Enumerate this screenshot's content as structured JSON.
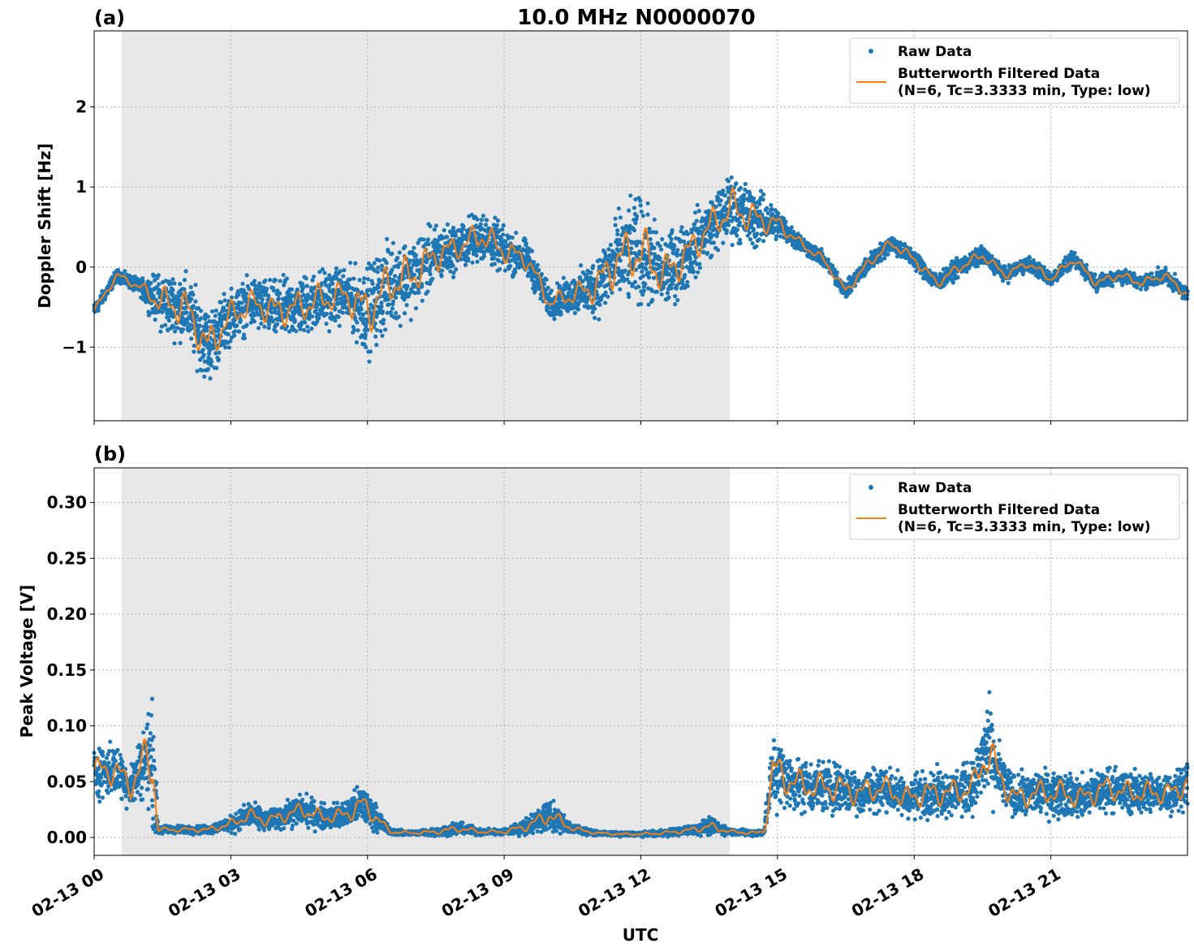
{
  "chart_data": [
    {
      "type": "line",
      "panel_label": "(a)",
      "title": "10.0 MHz N0000070",
      "xlabel": "",
      "ylabel": "Doppler Shift [Hz]",
      "x_unit": "hours since 02-13 00 UTC",
      "xlim": [
        0,
        24
      ],
      "ylim": [
        -1.92,
        2.95
      ],
      "xticks": [
        0,
        3,
        6,
        9,
        12,
        15,
        18,
        21
      ],
      "yticks": [
        -1,
        0,
        1,
        2
      ],
      "ytick_labels": [
        "−1",
        "0",
        "1",
        "2"
      ],
      "grid": true,
      "night_shading": [
        0.6,
        13.95
      ],
      "legend": {
        "position": "top-right",
        "entries": [
          "Raw Data",
          "Butterworth Filtered Data",
          "(N=6, Tc=3.3333 min, Type: low)"
        ]
      },
      "series": [
        {
          "name": "Raw Data",
          "style": "points",
          "color": "#1f77b4",
          "x": [
            0,
            0.5,
            1,
            1.5,
            2,
            2.5,
            3,
            3.5,
            4,
            4.5,
            5,
            5.5,
            6,
            6.5,
            7,
            7.5,
            8,
            8.5,
            9,
            9.5,
            10,
            10.5,
            11,
            11.5,
            12,
            12.5,
            13,
            13.5,
            14,
            14.5,
            15,
            15.5,
            16,
            16.5,
            17,
            17.5,
            18,
            18.5,
            19,
            19.5,
            20,
            20.5,
            21,
            21.5,
            22,
            22.5,
            23,
            23.5,
            24
          ],
          "y": [
            -0.55,
            -0.1,
            -0.25,
            -0.45,
            -0.5,
            -1.0,
            -0.6,
            -0.45,
            -0.55,
            -0.5,
            -0.4,
            -0.35,
            -0.55,
            -0.2,
            -0.1,
            0.15,
            0.25,
            0.4,
            0.2,
            0.1,
            -0.45,
            -0.35,
            -0.25,
            0.1,
            0.2,
            -0.1,
            0.15,
            0.5,
            0.75,
            0.6,
            0.55,
            0.3,
            0.1,
            -0.3,
            0.05,
            0.3,
            0.1,
            -0.2,
            0.0,
            0.15,
            -0.1,
            0.05,
            -0.15,
            0.1,
            -0.2,
            -0.1,
            -0.2,
            -0.1,
            -0.35
          ],
          "spread": [
            0.1,
            0.08,
            0.1,
            0.4,
            0.45,
            0.5,
            0.35,
            0.35,
            0.4,
            0.4,
            0.4,
            0.35,
            0.6,
            0.55,
            0.5,
            0.4,
            0.3,
            0.35,
            0.3,
            0.25,
            0.2,
            0.25,
            0.4,
            0.6,
            0.7,
            0.5,
            0.45,
            0.4,
            0.45,
            0.4,
            0.2,
            0.12,
            0.1,
            0.1,
            0.12,
            0.12,
            0.12,
            0.12,
            0.12,
            0.12,
            0.1,
            0.1,
            0.1,
            0.1,
            0.1,
            0.1,
            0.1,
            0.1,
            0.1
          ]
        },
        {
          "name": "Butterworth Filtered Data",
          "style": "line",
          "color": "#ff7f0e",
          "x": [
            0,
            0.5,
            1,
            1.5,
            2,
            2.5,
            3,
            3.5,
            4,
            4.5,
            5,
            5.5,
            6,
            6.5,
            7,
            7.5,
            8,
            8.5,
            9,
            9.5,
            10,
            10.5,
            11,
            11.5,
            12,
            12.5,
            13,
            13.5,
            14,
            14.5,
            15,
            15.5,
            16,
            16.5,
            17,
            17.5,
            18,
            18.5,
            19,
            19.5,
            20,
            20.5,
            21,
            21.5,
            22,
            22.5,
            23,
            23.5,
            24
          ],
          "y": [
            -0.55,
            -0.1,
            -0.25,
            -0.45,
            -0.5,
            -1.0,
            -0.6,
            -0.45,
            -0.55,
            -0.5,
            -0.4,
            -0.35,
            -0.55,
            -0.2,
            -0.1,
            0.15,
            0.25,
            0.4,
            0.2,
            0.1,
            -0.45,
            -0.35,
            -0.25,
            0.1,
            0.2,
            -0.1,
            0.15,
            0.5,
            0.75,
            0.6,
            0.55,
            0.3,
            0.1,
            -0.3,
            0.05,
            0.3,
            0.1,
            -0.2,
            0.0,
            0.15,
            -0.1,
            0.05,
            -0.15,
            0.1,
            -0.2,
            -0.1,
            -0.2,
            -0.1,
            -0.35
          ]
        }
      ]
    },
    {
      "type": "line",
      "panel_label": "(b)",
      "title": "",
      "xlabel": "UTC",
      "ylabel": "Peak Voltage [V]",
      "x_unit": "hours since 02-13 00 UTC",
      "xlim": [
        0,
        24
      ],
      "ylim": [
        -0.016,
        0.331
      ],
      "xticks": [
        0,
        3,
        6,
        9,
        12,
        15,
        18,
        21
      ],
      "xtick_labels": [
        "02-13 00",
        "02-13 03",
        "02-13 06",
        "02-13 09",
        "02-13 12",
        "02-13 15",
        "02-13 18",
        "02-13 21"
      ],
      "yticks": [
        0.0,
        0.05,
        0.1,
        0.15,
        0.2,
        0.25,
        0.3
      ],
      "ytick_labels": [
        "0.00",
        "0.05",
        "0.10",
        "0.15",
        "0.20",
        "0.25",
        "0.30"
      ],
      "grid": true,
      "night_shading": [
        0.6,
        13.95
      ],
      "legend": {
        "position": "top-right",
        "entries": [
          "Raw Data",
          "Butterworth Filtered Data",
          "(N=6, Tc=3.3333 min, Type: low)"
        ]
      },
      "series": [
        {
          "name": "Raw Data",
          "style": "points",
          "color": "#1f77b4",
          "x": [
            0,
            0.5,
            0.8,
            1.1,
            1.3,
            1.4,
            2,
            2.5,
            3,
            3.4,
            3.8,
            4.2,
            4.6,
            5,
            5.5,
            5.9,
            6.5,
            7,
            7.5,
            8,
            8.5,
            9,
            9.5,
            10,
            10.5,
            11,
            11.5,
            12,
            12.5,
            13,
            13.5,
            14,
            14.5,
            14.7,
            14.9,
            15.3,
            15.8,
            16.3,
            16.8,
            17.3,
            17.8,
            18.3,
            18.8,
            19.3,
            19.6,
            19.8,
            20.2,
            20.7,
            21.2,
            21.7,
            22.2,
            22.7,
            23.2,
            23.7,
            24
          ],
          "y": [
            0.06,
            0.06,
            0.045,
            0.07,
            0.065,
            0.007,
            0.007,
            0.007,
            0.012,
            0.02,
            0.015,
            0.02,
            0.025,
            0.018,
            0.02,
            0.03,
            0.005,
            0.004,
            0.005,
            0.008,
            0.005,
            0.005,
            0.01,
            0.02,
            0.008,
            0.004,
            0.003,
            0.003,
            0.004,
            0.006,
            0.01,
            0.005,
            0.004,
            0.005,
            0.06,
            0.05,
            0.045,
            0.045,
            0.04,
            0.045,
            0.035,
            0.04,
            0.04,
            0.045,
            0.08,
            0.06,
            0.035,
            0.04,
            0.04,
            0.035,
            0.045,
            0.04,
            0.04,
            0.04,
            0.05
          ],
          "spread": [
            0.025,
            0.025,
            0.02,
            0.035,
            0.06,
            0.004,
            0.004,
            0.004,
            0.008,
            0.012,
            0.01,
            0.012,
            0.015,
            0.012,
            0.013,
            0.02,
            0.003,
            0.002,
            0.004,
            0.006,
            0.003,
            0.003,
            0.008,
            0.015,
            0.005,
            0.002,
            0.002,
            0.002,
            0.003,
            0.004,
            0.008,
            0.003,
            0.003,
            0.004,
            0.04,
            0.025,
            0.025,
            0.025,
            0.022,
            0.022,
            0.02,
            0.022,
            0.022,
            0.025,
            0.05,
            0.03,
            0.02,
            0.022,
            0.022,
            0.02,
            0.022,
            0.02,
            0.02,
            0.02,
            0.02
          ]
        },
        {
          "name": "Butterworth Filtered Data",
          "style": "line",
          "color": "#ff7f0e",
          "x": [
            0,
            0.5,
            0.8,
            1.1,
            1.3,
            1.4,
            2,
            2.5,
            3,
            3.4,
            3.8,
            4.2,
            4.6,
            5,
            5.5,
            5.9,
            6.5,
            7,
            7.5,
            8,
            8.5,
            9,
            9.5,
            10,
            10.5,
            11,
            11.5,
            12,
            12.5,
            13,
            13.5,
            14,
            14.5,
            14.7,
            14.9,
            15.3,
            15.8,
            16.3,
            16.8,
            17.3,
            17.8,
            18.3,
            18.8,
            19.3,
            19.6,
            19.8,
            20.2,
            20.7,
            21.2,
            21.7,
            22.2,
            22.7,
            23.2,
            23.7,
            24
          ],
          "y": [
            0.06,
            0.06,
            0.045,
            0.07,
            0.065,
            0.007,
            0.007,
            0.007,
            0.012,
            0.02,
            0.015,
            0.02,
            0.025,
            0.018,
            0.02,
            0.03,
            0.005,
            0.004,
            0.005,
            0.008,
            0.005,
            0.005,
            0.01,
            0.02,
            0.008,
            0.004,
            0.003,
            0.003,
            0.004,
            0.006,
            0.01,
            0.005,
            0.004,
            0.005,
            0.06,
            0.05,
            0.045,
            0.045,
            0.04,
            0.045,
            0.035,
            0.04,
            0.04,
            0.045,
            0.08,
            0.06,
            0.035,
            0.04,
            0.04,
            0.035,
            0.045,
            0.04,
            0.04,
            0.04,
            0.05
          ]
        }
      ]
    }
  ]
}
